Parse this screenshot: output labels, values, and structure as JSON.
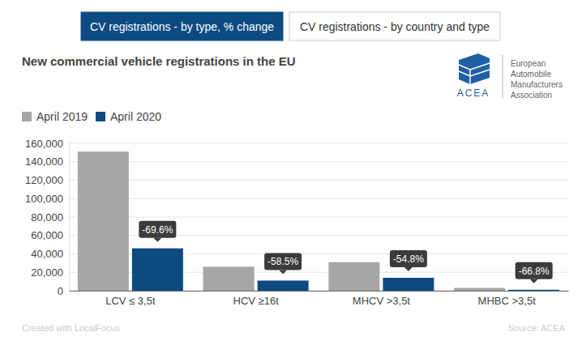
{
  "tabs": [
    "CV registrations - by type, % change",
    "CV registrations - by country and type"
  ],
  "logo": {
    "mark": "ACEA",
    "name": [
      "European",
      "Automobile",
      "Manufacturers",
      "Association"
    ]
  },
  "footer": {
    "credit": "Created with LocalFocus",
    "source": "Source: ACEA"
  },
  "chart_data": {
    "type": "bar",
    "title": "New commercial vehicle registrations in the EU",
    "categories": [
      "LCV ≤ 3,5t",
      "HCV ≥16t",
      "MHCV >3,5t",
      "MHBC >3,5t"
    ],
    "series": [
      {
        "name": "April 2019",
        "color": "#a6a6a6",
        "values": [
          151000,
          26000,
          31000,
          3000
        ]
      },
      {
        "name": "April 2020",
        "color": "#0d4a82",
        "values": [
          46000,
          11000,
          14000,
          1000
        ]
      }
    ],
    "annotations": [
      {
        "category": "LCV ≤ 3,5t",
        "text": "-69.6%"
      },
      {
        "category": "HCV ≥16t",
        "text": "-58.5%"
      },
      {
        "category": "MHCV >3,5t",
        "text": "-54.8%"
      },
      {
        "category": "MHBC >3,5t",
        "text": "-66.8%"
      }
    ],
    "ylim": [
      0,
      160000
    ],
    "yticks": [
      0,
      {
        "value": 20000,
        "label": "20,000"
      },
      {
        "value": 40000,
        "label": "40,000"
      },
      {
        "value": 60000,
        "label": "60,000"
      },
      {
        "value": 80000,
        "label": "80,000"
      },
      {
        "value": 100000,
        "label": "100,000"
      },
      {
        "value": 120000,
        "label": "120,000"
      },
      {
        "value": 140000,
        "label": "140,000"
      },
      {
        "value": 160000,
        "label": "160,000"
      }
    ],
    "grid": true,
    "legend": "top-left"
  }
}
